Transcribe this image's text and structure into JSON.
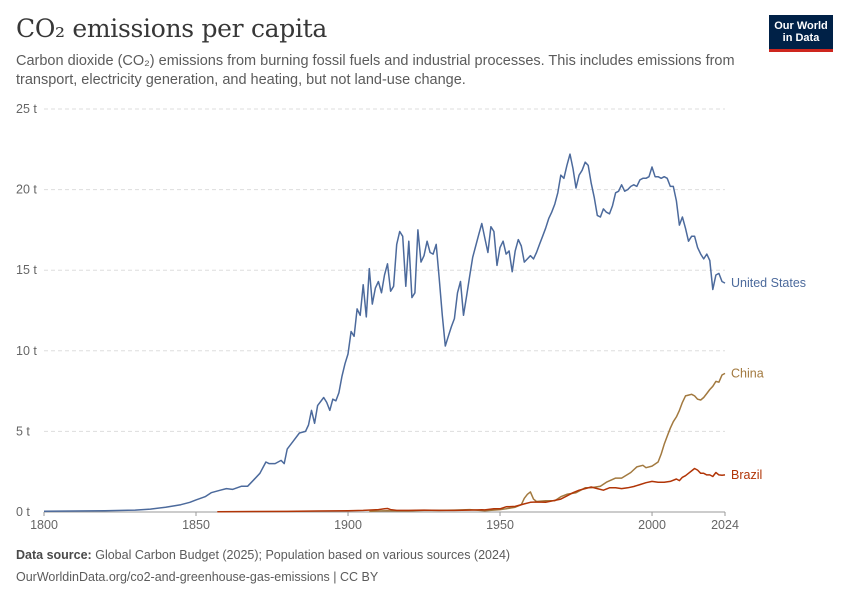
{
  "header": {
    "title": "CO₂ emissions per capita",
    "subtitle": "Carbon dioxide (CO₂) emissions from burning fossil fuels and industrial processes. This includes emissions from transport, electricity generation, and heating, but not land-use change.",
    "logo_line1": "Our World",
    "logo_line2": "in Data"
  },
  "footer": {
    "source_label": "Data source:",
    "source_text": "Global Carbon Budget (2025); Population based on various sources (2024)",
    "url_text": "OurWorldinData.org/co2-and-greenhouse-gas-emissions | CC BY"
  },
  "chart_data": {
    "type": "line",
    "title": "CO₂ emissions per capita",
    "xlim": [
      1800,
      2024
    ],
    "ylim": [
      0,
      25
    ],
    "x_ticks": [
      1800,
      1850,
      1900,
      1950,
      2000,
      2024
    ],
    "y_ticks": [
      0,
      5,
      10,
      15,
      20,
      25
    ],
    "y_tick_labels": [
      "0 t",
      "5 t",
      "10 t",
      "15 t",
      "20 t",
      "25 t"
    ],
    "grid": "horizontal-dashed",
    "legend": "line-end labels",
    "series": [
      {
        "name": "United States",
        "color": "#4c6a9c",
        "points": [
          [
            1800,
            0.05
          ],
          [
            1810,
            0.06
          ],
          [
            1820,
            0.08
          ],
          [
            1830,
            0.12
          ],
          [
            1835,
            0.18
          ],
          [
            1840,
            0.3
          ],
          [
            1845,
            0.45
          ],
          [
            1848,
            0.6
          ],
          [
            1850,
            0.75
          ],
          [
            1853,
            0.95
          ],
          [
            1855,
            1.2
          ],
          [
            1858,
            1.35
          ],
          [
            1860,
            1.45
          ],
          [
            1862,
            1.4
          ],
          [
            1865,
            1.6
          ],
          [
            1867,
            1.6
          ],
          [
            1869,
            2.0
          ],
          [
            1871,
            2.4
          ],
          [
            1873,
            3.1
          ],
          [
            1874,
            3.0
          ],
          [
            1876,
            3.0
          ],
          [
            1878,
            3.2
          ],
          [
            1879,
            3.0
          ],
          [
            1880,
            3.9
          ],
          [
            1882,
            4.4
          ],
          [
            1884,
            4.9
          ],
          [
            1886,
            5.0
          ],
          [
            1887,
            5.4
          ],
          [
            1888,
            6.3
          ],
          [
            1889,
            5.5
          ],
          [
            1890,
            6.6
          ],
          [
            1892,
            7.1
          ],
          [
            1893,
            6.8
          ],
          [
            1894,
            6.3
          ],
          [
            1895,
            7.0
          ],
          [
            1896,
            6.9
          ],
          [
            1897,
            7.4
          ],
          [
            1898,
            8.4
          ],
          [
            1899,
            9.2
          ],
          [
            1900,
            9.8
          ],
          [
            1901,
            11.2
          ],
          [
            1902,
            10.9
          ],
          [
            1903,
            12.6
          ],
          [
            1904,
            12.2
          ],
          [
            1905,
            14.1
          ],
          [
            1906,
            12.1
          ],
          [
            1907,
            15.1
          ],
          [
            1908,
            12.9
          ],
          [
            1909,
            13.9
          ],
          [
            1910,
            14.3
          ],
          [
            1911,
            13.6
          ],
          [
            1912,
            14.7
          ],
          [
            1913,
            15.4
          ],
          [
            1914,
            13.7
          ],
          [
            1915,
            14.0
          ],
          [
            1916,
            16.6
          ],
          [
            1917,
            17.4
          ],
          [
            1918,
            17.1
          ],
          [
            1919,
            14.0
          ],
          [
            1920,
            16.8
          ],
          [
            1921,
            13.3
          ],
          [
            1922,
            13.6
          ],
          [
            1923,
            17.5
          ],
          [
            1924,
            15.5
          ],
          [
            1925,
            15.9
          ],
          [
            1926,
            16.8
          ],
          [
            1927,
            16.1
          ],
          [
            1928,
            16.0
          ],
          [
            1929,
            16.6
          ],
          [
            1930,
            14.5
          ],
          [
            1931,
            12.2
          ],
          [
            1932,
            10.3
          ],
          [
            1933,
            10.9
          ],
          [
            1934,
            11.5
          ],
          [
            1935,
            12.0
          ],
          [
            1936,
            13.6
          ],
          [
            1937,
            14.3
          ],
          [
            1938,
            12.2
          ],
          [
            1939,
            13.4
          ],
          [
            1940,
            14.6
          ],
          [
            1941,
            15.8
          ],
          [
            1942,
            16.5
          ],
          [
            1943,
            17.2
          ],
          [
            1944,
            17.9
          ],
          [
            1945,
            17.0
          ],
          [
            1946,
            16.1
          ],
          [
            1947,
            17.7
          ],
          [
            1948,
            17.4
          ],
          [
            1949,
            15.3
          ],
          [
            1950,
            16.4
          ],
          [
            1951,
            16.8
          ],
          [
            1952,
            16.0
          ],
          [
            1953,
            16.2
          ],
          [
            1954,
            14.9
          ],
          [
            1955,
            16.2
          ],
          [
            1956,
            16.9
          ],
          [
            1957,
            16.5
          ],
          [
            1958,
            15.5
          ],
          [
            1959,
            15.7
          ],
          [
            1960,
            15.9
          ],
          [
            1961,
            15.7
          ],
          [
            1962,
            16.1
          ],
          [
            1963,
            16.6
          ],
          [
            1964,
            17.1
          ],
          [
            1965,
            17.6
          ],
          [
            1966,
            18.2
          ],
          [
            1967,
            18.6
          ],
          [
            1968,
            19.1
          ],
          [
            1969,
            19.8
          ],
          [
            1970,
            20.9
          ],
          [
            1971,
            20.7
          ],
          [
            1972,
            21.5
          ],
          [
            1973,
            22.2
          ],
          [
            1974,
            21.3
          ],
          [
            1975,
            20.1
          ],
          [
            1976,
            20.9
          ],
          [
            1977,
            21.2
          ],
          [
            1978,
            21.7
          ],
          [
            1979,
            21.5
          ],
          [
            1980,
            20.4
          ],
          [
            1981,
            19.5
          ],
          [
            1982,
            18.4
          ],
          [
            1983,
            18.3
          ],
          [
            1984,
            18.8
          ],
          [
            1985,
            18.6
          ],
          [
            1986,
            18.5
          ],
          [
            1987,
            19.0
          ],
          [
            1988,
            19.8
          ],
          [
            1989,
            19.9
          ],
          [
            1990,
            20.3
          ],
          [
            1991,
            19.9
          ],
          [
            1992,
            20.0
          ],
          [
            1993,
            20.2
          ],
          [
            1994,
            20.3
          ],
          [
            1995,
            20.2
          ],
          [
            1996,
            20.6
          ],
          [
            1997,
            20.7
          ],
          [
            1998,
            20.7
          ],
          [
            1999,
            20.8
          ],
          [
            2000,
            21.4
          ],
          [
            2001,
            20.8
          ],
          [
            2002,
            20.8
          ],
          [
            2003,
            20.7
          ],
          [
            2004,
            20.8
          ],
          [
            2005,
            20.7
          ],
          [
            2006,
            20.2
          ],
          [
            2007,
            20.2
          ],
          [
            2008,
            19.3
          ],
          [
            2009,
            17.8
          ],
          [
            2010,
            18.3
          ],
          [
            2011,
            17.6
          ],
          [
            2012,
            16.8
          ],
          [
            2013,
            17.1
          ],
          [
            2014,
            17.1
          ],
          [
            2015,
            16.4
          ],
          [
            2016,
            16.0
          ],
          [
            2017,
            15.7
          ],
          [
            2018,
            16.0
          ],
          [
            2019,
            15.6
          ],
          [
            2020,
            13.8
          ],
          [
            2021,
            14.7
          ],
          [
            2022,
            14.8
          ],
          [
            2023,
            14.3
          ],
          [
            2024,
            14.2
          ]
        ]
      },
      {
        "name": "China",
        "color": "#a2793f",
        "points": [
          [
            1907,
            0.04
          ],
          [
            1910,
            0.06
          ],
          [
            1913,
            0.08
          ],
          [
            1915,
            0.07
          ],
          [
            1920,
            0.07
          ],
          [
            1925,
            0.1
          ],
          [
            1930,
            0.1
          ],
          [
            1935,
            0.12
          ],
          [
            1940,
            0.15
          ],
          [
            1945,
            0.08
          ],
          [
            1950,
            0.15
          ],
          [
            1952,
            0.2
          ],
          [
            1955,
            0.3
          ],
          [
            1957,
            0.45
          ],
          [
            1958,
            0.85
          ],
          [
            1959,
            1.1
          ],
          [
            1960,
            1.25
          ],
          [
            1961,
            0.8
          ],
          [
            1962,
            0.65
          ],
          [
            1965,
            0.7
          ],
          [
            1968,
            0.7
          ],
          [
            1970,
            0.95
          ],
          [
            1972,
            1.1
          ],
          [
            1975,
            1.2
          ],
          [
            1978,
            1.5
          ],
          [
            1980,
            1.5
          ],
          [
            1983,
            1.6
          ],
          [
            1985,
            1.85
          ],
          [
            1988,
            2.1
          ],
          [
            1990,
            2.1
          ],
          [
            1993,
            2.45
          ],
          [
            1995,
            2.8
          ],
          [
            1997,
            2.9
          ],
          [
            1998,
            2.75
          ],
          [
            2000,
            2.85
          ],
          [
            2002,
            3.1
          ],
          [
            2003,
            3.6
          ],
          [
            2004,
            4.2
          ],
          [
            2005,
            4.7
          ],
          [
            2006,
            5.2
          ],
          [
            2007,
            5.6
          ],
          [
            2008,
            5.9
          ],
          [
            2009,
            6.3
          ],
          [
            2010,
            6.8
          ],
          [
            2011,
            7.2
          ],
          [
            2012,
            7.25
          ],
          [
            2013,
            7.3
          ],
          [
            2014,
            7.2
          ],
          [
            2015,
            7.0
          ],
          [
            2016,
            6.95
          ],
          [
            2017,
            7.1
          ],
          [
            2018,
            7.35
          ],
          [
            2019,
            7.6
          ],
          [
            2020,
            7.8
          ],
          [
            2021,
            8.1
          ],
          [
            2022,
            8.05
          ],
          [
            2023,
            8.5
          ],
          [
            2024,
            8.6
          ]
        ]
      },
      {
        "name": "Brazil",
        "color": "#b13507",
        "points": [
          [
            1857,
            0.02
          ],
          [
            1870,
            0.03
          ],
          [
            1880,
            0.04
          ],
          [
            1890,
            0.06
          ],
          [
            1900,
            0.08
          ],
          [
            1905,
            0.1
          ],
          [
            1910,
            0.15
          ],
          [
            1912,
            0.2
          ],
          [
            1913,
            0.22
          ],
          [
            1914,
            0.15
          ],
          [
            1916,
            0.1
          ],
          [
            1920,
            0.1
          ],
          [
            1925,
            0.12
          ],
          [
            1930,
            0.1
          ],
          [
            1935,
            0.1
          ],
          [
            1940,
            0.12
          ],
          [
            1944,
            0.14
          ],
          [
            1945,
            0.13
          ],
          [
            1948,
            0.2
          ],
          [
            1950,
            0.2
          ],
          [
            1952,
            0.32
          ],
          [
            1955,
            0.35
          ],
          [
            1958,
            0.5
          ],
          [
            1960,
            0.6
          ],
          [
            1962,
            0.62
          ],
          [
            1965,
            0.6
          ],
          [
            1968,
            0.72
          ],
          [
            1970,
            0.8
          ],
          [
            1972,
            1.0
          ],
          [
            1974,
            1.2
          ],
          [
            1976,
            1.35
          ],
          [
            1978,
            1.45
          ],
          [
            1980,
            1.55
          ],
          [
            1982,
            1.45
          ],
          [
            1984,
            1.35
          ],
          [
            1986,
            1.5
          ],
          [
            1988,
            1.5
          ],
          [
            1990,
            1.45
          ],
          [
            1992,
            1.5
          ],
          [
            1994,
            1.58
          ],
          [
            1996,
            1.7
          ],
          [
            1998,
            1.82
          ],
          [
            2000,
            1.9
          ],
          [
            2002,
            1.85
          ],
          [
            2004,
            1.85
          ],
          [
            2006,
            1.9
          ],
          [
            2008,
            2.05
          ],
          [
            2009,
            1.95
          ],
          [
            2010,
            2.15
          ],
          [
            2011,
            2.25
          ],
          [
            2012,
            2.4
          ],
          [
            2013,
            2.55
          ],
          [
            2014,
            2.7
          ],
          [
            2015,
            2.6
          ],
          [
            2016,
            2.4
          ],
          [
            2017,
            2.4
          ],
          [
            2018,
            2.3
          ],
          [
            2019,
            2.3
          ],
          [
            2020,
            2.2
          ],
          [
            2021,
            2.45
          ],
          [
            2022,
            2.3
          ],
          [
            2023,
            2.28
          ],
          [
            2024,
            2.3
          ]
        ]
      }
    ]
  }
}
